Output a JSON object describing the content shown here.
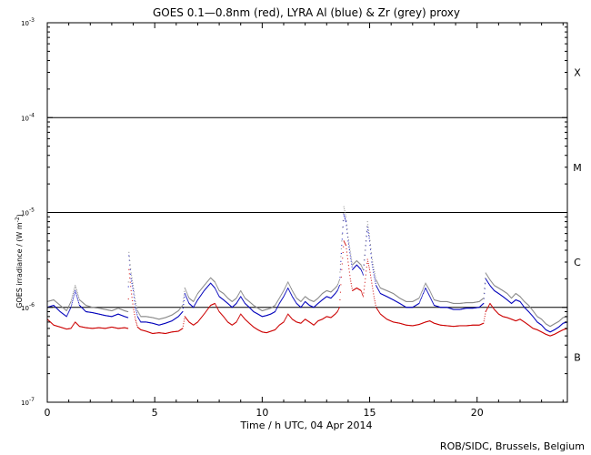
{
  "chart_data": {
    "type": "line",
    "title": "GOES 0.1—0.8nm (red), LYRA Al (blue) & Zr (grey) proxy",
    "xlabel": "Time / h UTC, 04 Apr 2014",
    "ylabel": "GOES irradiance / (W m",
    "ylabel_sup": "-2",
    "ylabel_close": ")",
    "x_scale": "linear",
    "y_scale": "log",
    "xlim": [
      0,
      24.2
    ],
    "ylim": [
      1e-07,
      0.001
    ],
    "x_ticks": [
      0,
      5,
      10,
      15,
      20
    ],
    "y_ticks": [
      {
        "value": 1e-07,
        "base": "10",
        "exp": "-7"
      },
      {
        "value": 1e-06,
        "base": "10",
        "exp": "-6"
      },
      {
        "value": 1e-05,
        "base": "10",
        "exp": "-5"
      },
      {
        "value": 0.0001,
        "base": "10",
        "exp": "-4"
      },
      {
        "value": 0.001,
        "base": "10",
        "exp": "-3"
      }
    ],
    "flare_class_lines": [
      1e-06,
      1e-05,
      0.0001
    ],
    "flare_classes": [
      {
        "label": "B",
        "value": 3e-07
      },
      {
        "label": "C",
        "value": 3e-06
      },
      {
        "label": "M",
        "value": 3e-05
      },
      {
        "label": "X",
        "value": 0.0003
      }
    ],
    "grid": false,
    "series": [
      {
        "color": "#cc0000",
        "x": [
          0,
          0.3,
          0.6,
          0.9,
          1.1,
          1.3,
          1.5,
          1.8,
          2.1,
          2.4,
          2.7,
          3.0,
          3.3,
          3.6,
          3.75,
          3.8,
          3.9,
          4.0,
          4.1,
          4.2,
          4.35,
          4.6,
          4.9,
          5.2,
          5.5,
          5.8,
          6.1,
          6.3,
          6.4,
          6.6,
          6.8,
          7.0,
          7.3,
          7.6,
          7.8,
          8.0,
          8.2,
          8.4,
          8.6,
          8.8,
          9.0,
          9.2,
          9.4,
          9.6,
          9.8,
          10.0,
          10.2,
          10.4,
          10.6,
          10.8,
          11.0,
          11.2,
          11.4,
          11.6,
          11.8,
          12.0,
          12.2,
          12.4,
          12.6,
          12.8,
          13.0,
          13.2,
          13.4,
          13.5,
          13.6,
          13.7,
          13.8,
          13.9,
          14.0,
          14.1,
          14.2,
          14.4,
          14.6,
          14.7,
          14.8,
          14.9,
          15.0,
          15.1,
          15.2,
          15.3,
          15.5,
          15.8,
          16.1,
          16.4,
          16.7,
          17.0,
          17.3,
          17.6,
          17.8,
          18.0,
          18.3,
          18.6,
          18.9,
          19.2,
          19.5,
          19.8,
          20.1,
          20.3,
          20.4,
          20.6,
          20.8,
          21.0,
          21.2,
          21.4,
          21.6,
          21.8,
          22.0,
          22.2,
          22.4,
          22.6,
          22.8,
          23.0,
          23.2,
          23.4,
          23.6,
          23.8,
          24.0,
          24.2
        ],
        "y": [
          7.5e-07,
          6.5e-07,
          6.2e-07,
          5.9e-07,
          6e-07,
          7e-07,
          6.3e-07,
          6.1e-07,
          6e-07,
          6.1e-07,
          6e-07,
          6.2e-07,
          6e-07,
          6.1e-07,
          6e-07,
          2.5e-06,
          1.5e-06,
          1e-06,
          7.5e-07,
          6.2e-07,
          5.8e-07,
          5.6e-07,
          5.3e-07,
          5.4e-07,
          5.3e-07,
          5.5e-07,
          5.6e-07,
          6e-07,
          8e-07,
          7e-07,
          6.5e-07,
          7e-07,
          8.5e-07,
          1.05e-06,
          1.1e-06,
          9e-07,
          8e-07,
          7e-07,
          6.5e-07,
          7e-07,
          8.5e-07,
          7.5e-07,
          6.8e-07,
          6.2e-07,
          5.8e-07,
          5.5e-07,
          5.4e-07,
          5.6e-07,
          5.8e-07,
          6.5e-07,
          7e-07,
          8.5e-07,
          7.5e-07,
          7e-07,
          6.8e-07,
          7.5e-07,
          7e-07,
          6.5e-07,
          7.2e-07,
          7.5e-07,
          8e-07,
          7.8e-07,
          8.5e-07,
          9e-07,
          1e-06,
          2.5e-06,
          5e-06,
          4.5e-06,
          3e-06,
          2e-06,
          1.5e-06,
          1.6e-06,
          1.5e-06,
          1.3e-06,
          2e-06,
          3.2e-06,
          2.5e-06,
          1.8e-06,
          1.3e-06,
          1e-06,
          8.5e-07,
          7.5e-07,
          7e-07,
          6.8e-07,
          6.5e-07,
          6.4e-07,
          6.6e-07,
          7e-07,
          7.2e-07,
          6.8e-07,
          6.5e-07,
          6.4e-07,
          6.3e-07,
          6.4e-07,
          6.4e-07,
          6.5e-07,
          6.5e-07,
          6.8e-07,
          9e-07,
          1.1e-06,
          9.5e-07,
          8.5e-07,
          8e-07,
          7.8e-07,
          7.5e-07,
          7.2e-07,
          7.5e-07,
          7e-07,
          6.5e-07,
          6e-07,
          5.8e-07,
          5.5e-07,
          5.2e-07,
          5e-07,
          5.2e-07,
          5.5e-07,
          5.8e-07,
          6e-07
        ]
      },
      {
        "color": "#0000bb",
        "x": [
          0,
          0.3,
          0.6,
          0.9,
          1.1,
          1.3,
          1.5,
          1.8,
          2.1,
          2.4,
          2.7,
          3.0,
          3.3,
          3.6,
          3.75,
          3.8,
          3.9,
          4.0,
          4.1,
          4.2,
          4.35,
          4.6,
          4.9,
          5.2,
          5.5,
          5.8,
          6.1,
          6.3,
          6.4,
          6.6,
          6.8,
          7.0,
          7.3,
          7.6,
          7.8,
          8.0,
          8.2,
          8.4,
          8.6,
          8.8,
          9.0,
          9.2,
          9.4,
          9.6,
          9.8,
          10.0,
          10.2,
          10.4,
          10.6,
          10.8,
          11.0,
          11.2,
          11.4,
          11.6,
          11.8,
          12.0,
          12.2,
          12.4,
          12.6,
          12.8,
          13.0,
          13.2,
          13.4,
          13.5,
          13.6,
          13.7,
          13.8,
          13.9,
          14.0,
          14.1,
          14.2,
          14.4,
          14.6,
          14.7,
          14.8,
          14.9,
          15.0,
          15.1,
          15.2,
          15.3,
          15.5,
          15.8,
          16.1,
          16.4,
          16.7,
          17.0,
          17.3,
          17.6,
          17.8,
          18.0,
          18.3,
          18.6,
          18.9,
          19.2,
          19.5,
          19.8,
          20.1,
          20.3,
          20.4,
          20.6,
          20.8,
          21.0,
          21.2,
          21.4,
          21.6,
          21.8,
          22.0,
          22.2,
          22.4,
          22.6,
          22.8,
          23.0,
          23.2,
          23.4,
          23.6,
          23.8,
          24.0,
          24.2
        ],
        "y": [
          1e-06,
          1.05e-06,
          9e-07,
          8e-07,
          1e-06,
          1.5e-06,
          1.05e-06,
          9e-07,
          8.8e-07,
          8.5e-07,
          8.2e-07,
          8e-07,
          8.5e-07,
          8e-07,
          7.8e-07,
          3.5e-06,
          2e-06,
          1.5e-06,
          1e-06,
          8e-07,
          7e-07,
          7e-07,
          6.8e-07,
          6.5e-07,
          6.8e-07,
          7.2e-07,
          8e-07,
          9e-07,
          1.4e-06,
          1.1e-06,
          1e-06,
          1.2e-06,
          1.5e-06,
          1.8e-06,
          1.6e-06,
          1.3e-06,
          1.2e-06,
          1.1e-06,
          1e-06,
          1.1e-06,
          1.3e-06,
          1.1e-06,
          1e-06,
          9e-07,
          8.5e-07,
          8e-07,
          8.2e-07,
          8.5e-07,
          9e-07,
          1.1e-06,
          1.3e-06,
          1.6e-06,
          1.3e-06,
          1.1e-06,
          1e-06,
          1.15e-06,
          1.05e-06,
          1e-06,
          1.1e-06,
          1.2e-06,
          1.3e-06,
          1.25e-06,
          1.4e-06,
          1.5e-06,
          1.7e-06,
          4.5e-06,
          9.5e-06,
          8e-06,
          5e-06,
          3.5e-06,
          2.5e-06,
          2.8e-06,
          2.5e-06,
          2.2e-06,
          4e-06,
          7e-06,
          5e-06,
          3e-06,
          2.2e-06,
          1.7e-06,
          1.4e-06,
          1.3e-06,
          1.2e-06,
          1.1e-06,
          1e-06,
          1e-06,
          1.1e-06,
          1.6e-06,
          1.3e-06,
          1.05e-06,
          1e-06,
          1e-06,
          9.5e-07,
          9.5e-07,
          9.8e-07,
          9.8e-07,
          1e-06,
          1.1e-06,
          2e-06,
          1.7e-06,
          1.5e-06,
          1.4e-06,
          1.3e-06,
          1.2e-06,
          1.1e-06,
          1.2e-06,
          1.15e-06,
          1e-06,
          9e-07,
          8e-07,
          7e-07,
          6.5e-07,
          5.8e-07,
          5.5e-07,
          5.8e-07,
          6.2e-07,
          6.8e-07,
          7e-07
        ]
      },
      {
        "color": "#888888",
        "x": [
          0,
          0.3,
          0.6,
          0.9,
          1.1,
          1.3,
          1.5,
          1.8,
          2.1,
          2.4,
          2.7,
          3.0,
          3.3,
          3.6,
          3.75,
          3.8,
          3.9,
          4.0,
          4.1,
          4.2,
          4.35,
          4.6,
          4.9,
          5.2,
          5.5,
          5.8,
          6.1,
          6.3,
          6.4,
          6.6,
          6.8,
          7.0,
          7.3,
          7.6,
          7.8,
          8.0,
          8.2,
          8.4,
          8.6,
          8.8,
          9.0,
          9.2,
          9.4,
          9.6,
          9.8,
          10.0,
          10.2,
          10.4,
          10.6,
          10.8,
          11.0,
          11.2,
          11.4,
          11.6,
          11.8,
          12.0,
          12.2,
          12.4,
          12.6,
          12.8,
          13.0,
          13.2,
          13.4,
          13.5,
          13.6,
          13.7,
          13.8,
          13.9,
          14.0,
          14.1,
          14.2,
          14.4,
          14.6,
          14.7,
          14.8,
          14.9,
          15.0,
          15.1,
          15.2,
          15.3,
          15.5,
          15.8,
          16.1,
          16.4,
          16.7,
          17.0,
          17.3,
          17.6,
          17.8,
          18.0,
          18.3,
          18.6,
          18.9,
          19.2,
          19.5,
          19.8,
          20.1,
          20.3,
          20.4,
          20.6,
          20.8,
          21.0,
          21.2,
          21.4,
          21.6,
          21.8,
          22.0,
          22.2,
          22.4,
          22.6,
          22.8,
          23.0,
          23.2,
          23.4,
          23.6,
          23.8,
          24.0,
          24.2
        ],
        "y": [
          1.15e-06,
          1.2e-06,
          1.05e-06,
          9.2e-07,
          1.15e-06,
          1.7e-06,
          1.2e-06,
          1.05e-06,
          1e-06,
          9.8e-07,
          9.5e-07,
          9.2e-07,
          9.8e-07,
          9.2e-07,
          9e-07,
          3.8e-06,
          2.3e-06,
          1.7e-06,
          1.15e-06,
          9.2e-07,
          8e-07,
          8e-07,
          7.8e-07,
          7.5e-07,
          7.8e-07,
          8.3e-07,
          9.2e-07,
          1.05e-06,
          1.6e-06,
          1.25e-06,
          1.15e-06,
          1.4e-06,
          1.7e-06,
          2.05e-06,
          1.85e-06,
          1.5e-06,
          1.4e-06,
          1.25e-06,
          1.15e-06,
          1.25e-06,
          1.5e-06,
          1.25e-06,
          1.15e-06,
          1.05e-06,
          9.8e-07,
          9.2e-07,
          9.5e-07,
          9.8e-07,
          1.05e-06,
          1.25e-06,
          1.5e-06,
          1.85e-06,
          1.5e-06,
          1.25e-06,
          1.15e-06,
          1.3e-06,
          1.2e-06,
          1.15e-06,
          1.25e-06,
          1.4e-06,
          1.5e-06,
          1.45e-06,
          1.6e-06,
          1.7e-06,
          1.95e-06,
          5e-06,
          1.15e-05,
          9e-06,
          5.5e-06,
          3.9e-06,
          2.8e-06,
          3.1e-06,
          2.8e-06,
          2.5e-06,
          4.5e-06,
          8e-06,
          5.6e-06,
          3.4e-06,
          2.5e-06,
          1.95e-06,
          1.6e-06,
          1.5e-06,
          1.4e-06,
          1.25e-06,
          1.15e-06,
          1.15e-06,
          1.25e-06,
          1.8e-06,
          1.5e-06,
          1.2e-06,
          1.15e-06,
          1.15e-06,
          1.1e-06,
          1.1e-06,
          1.12e-06,
          1.12e-06,
          1.15e-06,
          1.25e-06,
          2.3e-06,
          1.95e-06,
          1.7e-06,
          1.6e-06,
          1.5e-06,
          1.4e-06,
          1.25e-06,
          1.4e-06,
          1.3e-06,
          1.15e-06,
          1.05e-06,
          9.2e-07,
          8e-07,
          7.5e-07,
          6.7e-07,
          6.3e-07,
          6.7e-07,
          7.1e-07,
          7.8e-07,
          8e-07
        ]
      }
    ]
  },
  "footer": "ROB/SIDC, Brussels, Belgium"
}
